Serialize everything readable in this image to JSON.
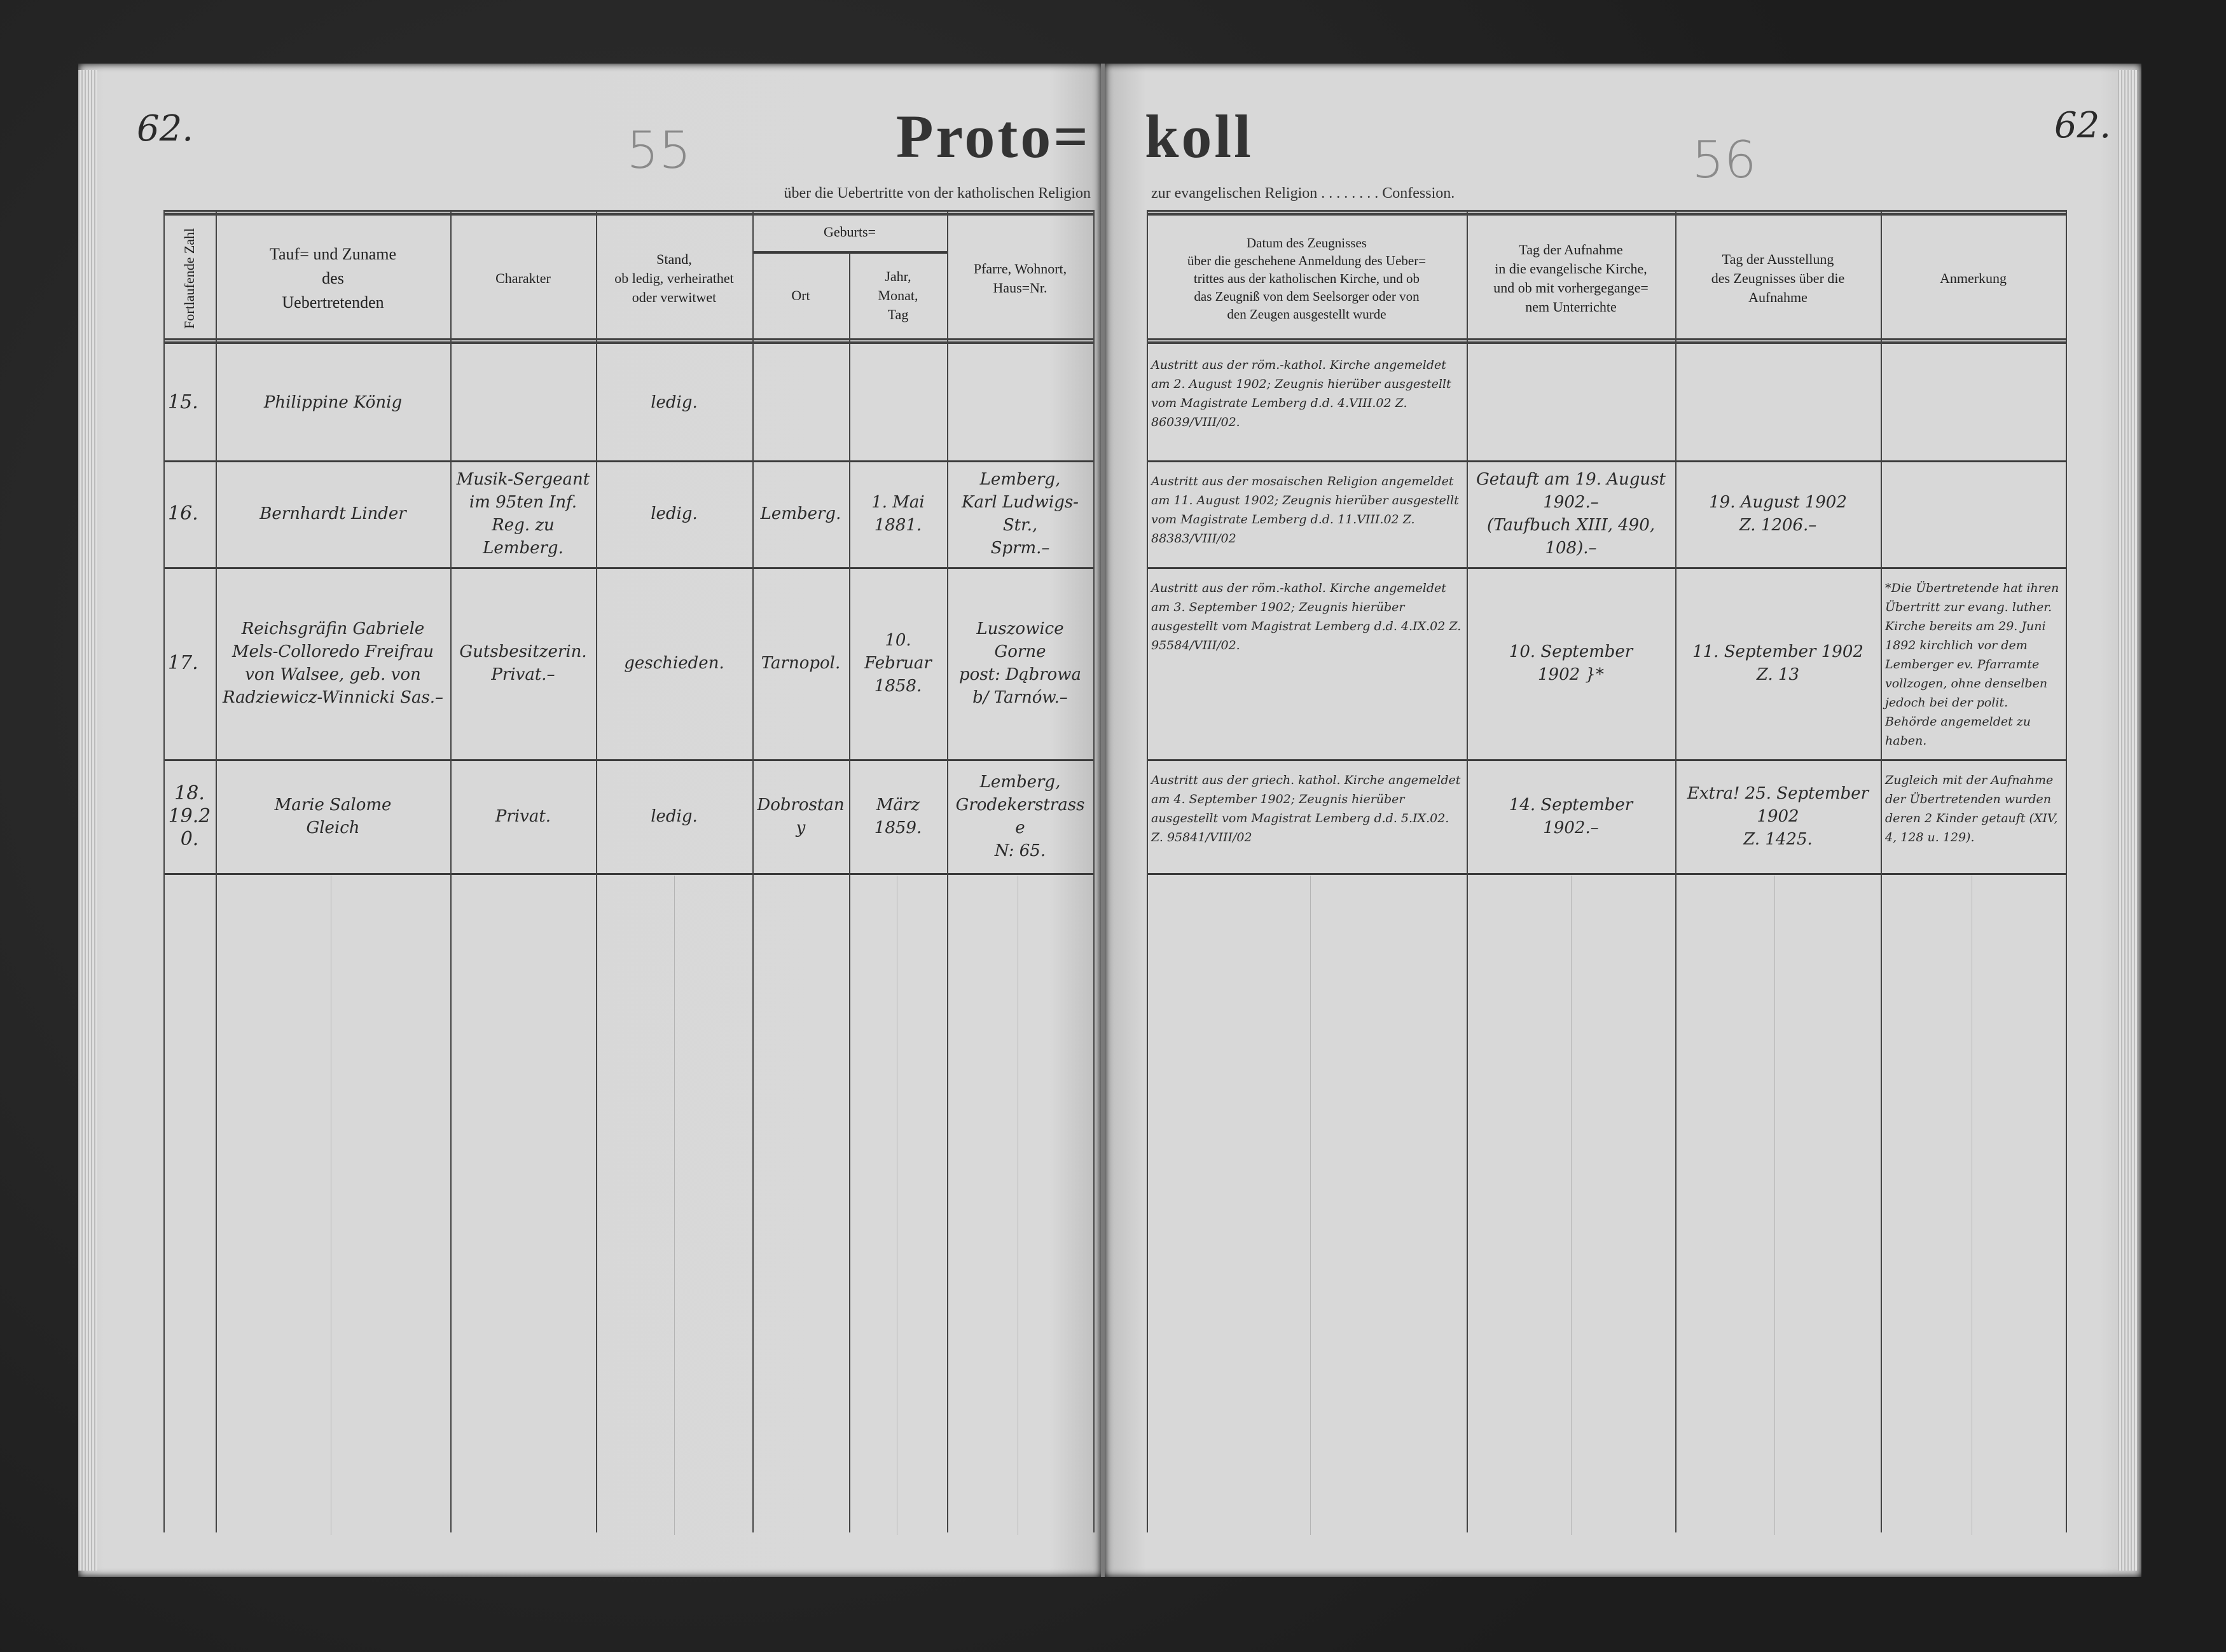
{
  "page_numbers": {
    "left": "62.",
    "right": "62."
  },
  "pencil_numbers": {
    "left": "55",
    "right": "56"
  },
  "title": {
    "left": "Proto=",
    "right": "koll"
  },
  "subtitle": {
    "left": "über die Uebertritte von der katholischen Religion",
    "right": "zur evangelischen Religion . . . . . . . . Confession."
  },
  "headers": {
    "left": [
      "Fortlaufende Zahl",
      "Tauf= und Zuname\ndes\nUebertretenden",
      "Charakter",
      "Stand,\nob ledig, verheirathet\noder verwitwet",
      "Geburts=",
      "Ort",
      "Jahr,\nMonat,\nTag",
      "Pfarre, Wohnort,\nHaus=Nr."
    ],
    "right": [
      "Datum des Zeugnisses\nüber die geschehene Anmeldung des Ueber=\ntrittes aus der katholischen Kirche, und ob\ndas Zeugniß von dem Seelsorger oder von\nden Zeugen ausgestellt wurde",
      "Tag der Aufnahme\nin die evangelische Kirche,\nund ob mit vorhergegange=\nnem Unterrichte",
      "Tag der Ausstellung\ndes Zeugnisses über die\nAufnahme",
      "Anmerkung"
    ]
  },
  "rows": [
    {
      "number": "15.",
      "name": "Philippine König",
      "charakter": "",
      "stand": "ledig.",
      "ort": "",
      "datum": "",
      "pfarre": "",
      "zeugnis": "Austritt aus der röm.-kathol. Kirche angemeldet am 2. August 1902; Zeugnis hierüber ausgestellt vom Magistrate Lemberg d.d. 4.VIII.02 Z. 86039/VIII/02.",
      "aufnahme": "",
      "ausstellung": "",
      "anmerkung": ""
    },
    {
      "number": "16.",
      "name": "Bernhardt Linder",
      "charakter": "Musik-Sergeant im 95ten Inf. Reg. zu Lemberg.",
      "stand": "ledig.",
      "ort": "Lemberg.",
      "datum": "1. Mai\n1881.",
      "pfarre": "Lemberg,\nKarl Ludwigs-Str.,\nSprm.–",
      "zeugnis": "Austritt aus der mosaischen Religion angemeldet am 11. August 1902; Zeugnis hierüber ausgestellt vom Magistrate Lemberg d.d. 11.VIII.02 Z. 88383/VIII/02",
      "aufnahme": "Getauft am 19. August\n1902.–\n(Taufbuch XIII, 490, 108).–",
      "ausstellung": "19. August 1902\nZ. 1206.–",
      "anmerkung": ""
    },
    {
      "number": "17.",
      "name": "Reichsgräfin Gabriele Mels-Colloredo Freifrau von Walsee, geb. von Radziewicz-Winnicki Sas.–",
      "charakter": "Gutsbesitzerin. Privat.–",
      "stand": "geschieden.",
      "ort": "Tarnopol.",
      "datum": "10. Februar\n1858.",
      "pfarre": "Luszowice Gorne\npost: Dąbrowa\nb/ Tarnów.–",
      "zeugnis": "Austritt aus der röm.-kathol. Kirche angemeldet am 3. September 1902; Zeugnis hierüber ausgestellt vom Magistrat Lemberg d.d. 4.IX.02 Z. 95584/VIII/02.",
      "aufnahme": "10. September\n1902 }*",
      "ausstellung": "11. September 1902\nZ. 13",
      "anmerkung": "*Die Übertretende hat ihren Übertritt zur evang. luther. Kirche bereits am 29. Juni 1892 kirchlich vor dem Lemberger ev. Pfarramte vollzogen, ohne denselben jedoch bei der polit. Behörde angemeldet zu haben."
    },
    {
      "number": "18.\n19.20.",
      "name": "Marie Salome\nGleich",
      "charakter": "Privat.",
      "stand": "ledig.",
      "ort": "Dobrostany",
      "datum": "März\n1859.",
      "pfarre": "Lemberg,\nGrodekerstrasse\nN: 65.",
      "zeugnis": "Austritt aus der griech. kathol. Kirche angemeldet am 4. September 1902; Zeugnis hierüber ausgestellt vom Magistrat Lemberg d.d. 5.IX.02. Z. 95841/VIII/02",
      "aufnahme": "14. September\n1902.–",
      "ausstellung": "Extra! 25. September 1902\nZ. 1425.",
      "anmerkung": "Zugleich mit der Aufnahme der Übertretenden wurden deren 2 Kinder getauft (XIV, 4, 128 u. 129)."
    }
  ],
  "colors": {
    "background": "#262626",
    "paper": "#d8d8d8",
    "ink": "#2a2a2a",
    "rule": "#444444"
  }
}
